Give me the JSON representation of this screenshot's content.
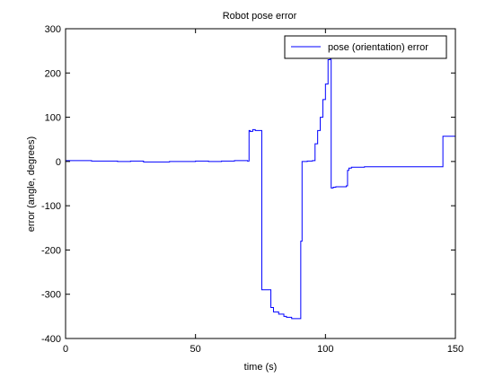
{
  "chart_data": {
    "type": "line",
    "title": "Robot pose error",
    "xlabel": "time (s)",
    "ylabel": "error (angle, degrees)",
    "xlim": [
      0,
      150
    ],
    "ylim": [
      -400,
      300
    ],
    "x_ticks": [
      0,
      50,
      100,
      150
    ],
    "x_tick_labels": [
      "0",
      "50",
      "100",
      "150"
    ],
    "y_ticks": [
      -400,
      -300,
      -200,
      -100,
      0,
      100,
      200,
      300
    ],
    "y_tick_labels": [
      "-400",
      "-300",
      "-200",
      "-100",
      "0",
      "100",
      "200",
      "300"
    ],
    "grid": false,
    "legend_location": "top-right",
    "series": [
      {
        "name": "pose (orientation) error",
        "color": "#0000ff",
        "step": true,
        "x": [
          0,
          10,
          20,
          25,
          30,
          40,
          50,
          55,
          60,
          65,
          70,
          70.6,
          71,
          72,
          73,
          75,
          75.5,
          78,
          79,
          80,
          82,
          84,
          85,
          87,
          88,
          90,
          90.5,
          91,
          93,
          95,
          96,
          97,
          98,
          99,
          100,
          101,
          101.8,
          102.2,
          103,
          104,
          108,
          108.5,
          109,
          110,
          115,
          120,
          130,
          140,
          145,
          145.2,
          150
        ],
        "y": [
          2,
          1,
          0,
          1,
          -1,
          0,
          1,
          0,
          1,
          2,
          1,
          70,
          68,
          72,
          70,
          70,
          -290,
          -290,
          -330,
          -340,
          -345,
          -350,
          -352,
          -355,
          -355,
          -355,
          -180,
          0,
          1,
          2,
          40,
          70,
          100,
          140,
          175,
          230,
          235,
          -60,
          -58,
          -57,
          -55,
          -20,
          -15,
          -13,
          -12,
          -12,
          -12,
          -12,
          -12,
          57,
          57
        ]
      }
    ]
  }
}
